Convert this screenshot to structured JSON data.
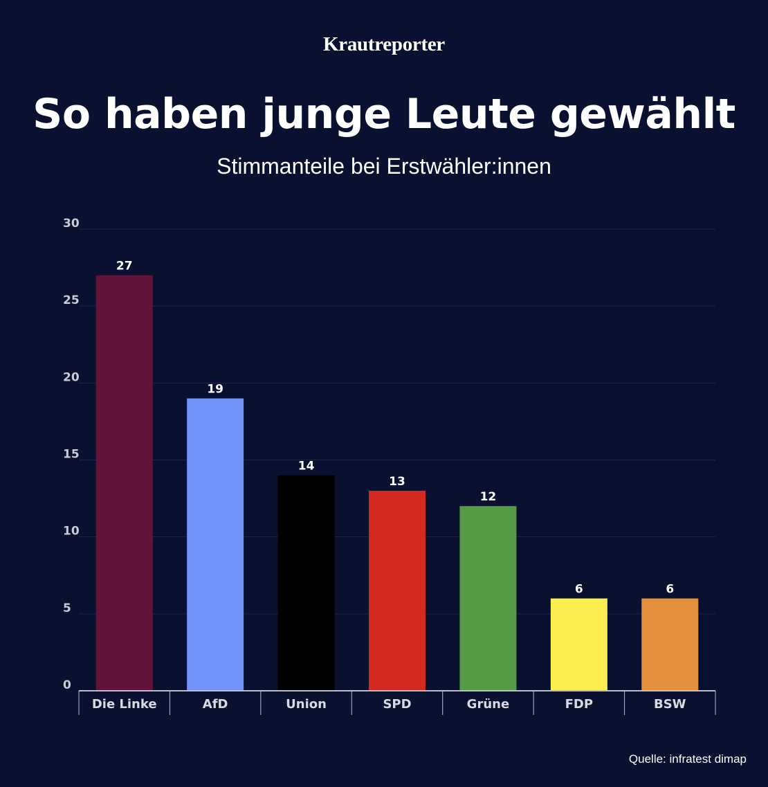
{
  "brand": {
    "name": "Krautreporter"
  },
  "source": "Quelle: infratest dimap",
  "chart_data": {
    "type": "bar",
    "title": "So haben junge Leute gewählt",
    "subtitle": "Stimmanteile bei Erstwähler:innen",
    "xlabel": "",
    "ylabel": "",
    "ylim": [
      0,
      30
    ],
    "yticks": [
      0,
      5,
      10,
      15,
      20,
      25,
      30
    ],
    "grid": true,
    "categories": [
      "Die Linke",
      "AfD",
      "Union",
      "SPD",
      "Grüne",
      "FDP",
      "BSW"
    ],
    "values": [
      27,
      19,
      14,
      13,
      12,
      6,
      6
    ],
    "colors": [
      "#63123a",
      "#7092f8",
      "#000000",
      "#d22a20",
      "#559a44",
      "#fced50",
      "#e2903b"
    ]
  },
  "colors": {
    "background": "#0a1130",
    "text": "#ffffff"
  }
}
